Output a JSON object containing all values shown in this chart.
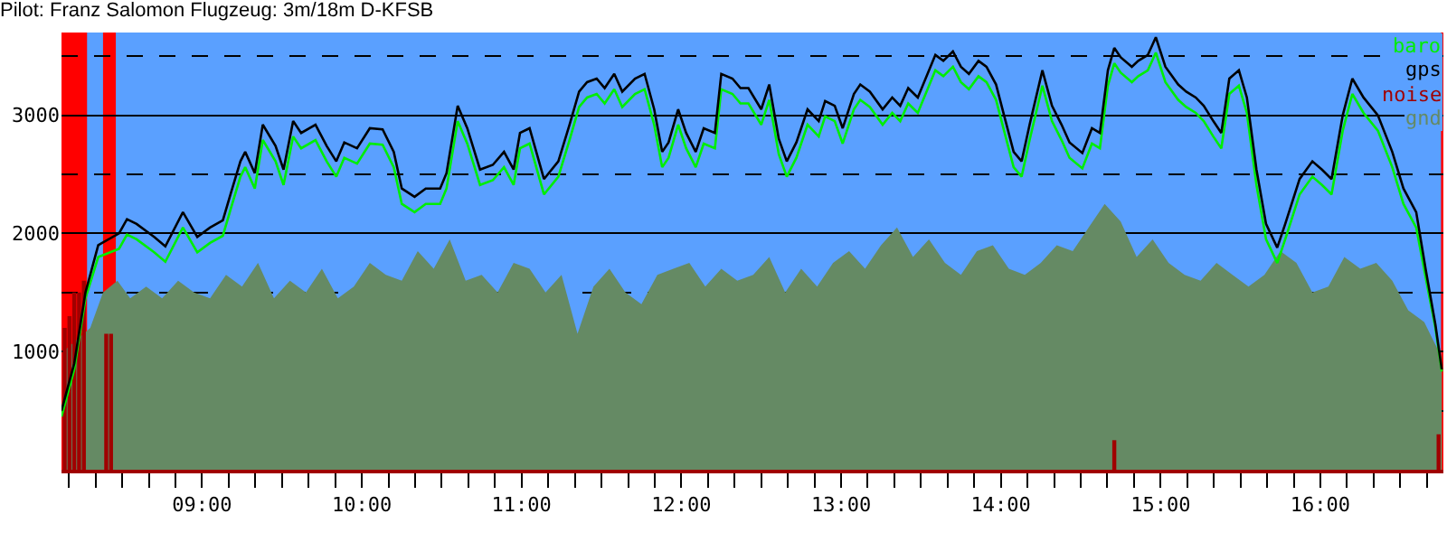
{
  "chart_data": {
    "type": "line",
    "title": "Pilot: Franz Salomon Flugzeug: 3m/18m D-KFSB",
    "xlim": [
      8.12,
      16.77
    ],
    "ylim": [
      0,
      3700
    ],
    "xticks": [
      {
        "value": 8.1667,
        "label": null
      },
      {
        "value": 8.3333,
        "label": null
      },
      {
        "value": 8.5,
        "label": null
      },
      {
        "value": 8.6667,
        "label": null
      },
      {
        "value": 8.8333,
        "label": null
      },
      {
        "value": 9,
        "label": "09:00"
      },
      {
        "value": 9.1667,
        "label": null
      },
      {
        "value": 9.3333,
        "label": null
      },
      {
        "value": 9.5,
        "label": null
      },
      {
        "value": 9.6667,
        "label": null
      },
      {
        "value": 9.8333,
        "label": null
      },
      {
        "value": 10,
        "label": "10:00"
      },
      {
        "value": 10.1667,
        "label": null
      },
      {
        "value": 10.3333,
        "label": null
      },
      {
        "value": 10.5,
        "label": null
      },
      {
        "value": 10.6667,
        "label": null
      },
      {
        "value": 10.8333,
        "label": null
      },
      {
        "value": 11,
        "label": "11:00"
      },
      {
        "value": 11.1667,
        "label": null
      },
      {
        "value": 11.3333,
        "label": null
      },
      {
        "value": 11.5,
        "label": null
      },
      {
        "value": 11.6667,
        "label": null
      },
      {
        "value": 11.8333,
        "label": null
      },
      {
        "value": 12,
        "label": "12:00"
      },
      {
        "value": 12.1667,
        "label": null
      },
      {
        "value": 12.3333,
        "label": null
      },
      {
        "value": 12.5,
        "label": null
      },
      {
        "value": 12.6667,
        "label": null
      },
      {
        "value": 12.8333,
        "label": null
      },
      {
        "value": 13,
        "label": "13:00"
      },
      {
        "value": 13.1667,
        "label": null
      },
      {
        "value": 13.3333,
        "label": null
      },
      {
        "value": 13.5,
        "label": null
      },
      {
        "value": 13.6667,
        "label": null
      },
      {
        "value": 13.8333,
        "label": null
      },
      {
        "value": 14,
        "label": "14:00"
      },
      {
        "value": 14.1667,
        "label": null
      },
      {
        "value": 14.3333,
        "label": null
      },
      {
        "value": 14.5,
        "label": null
      },
      {
        "value": 14.6667,
        "label": null
      },
      {
        "value": 14.8333,
        "label": null
      },
      {
        "value": 15,
        "label": "15:00"
      },
      {
        "value": 15.1667,
        "label": null
      },
      {
        "value": 15.3333,
        "label": null
      },
      {
        "value": 15.5,
        "label": null
      },
      {
        "value": 15.6667,
        "label": null
      },
      {
        "value": 15.8333,
        "label": null
      },
      {
        "value": 16,
        "label": "16:00"
      },
      {
        "value": 16.1667,
        "label": null
      },
      {
        "value": 16.3333,
        "label": null
      },
      {
        "value": 16.5,
        "label": null
      },
      {
        "value": 16.6667,
        "label": null
      }
    ],
    "yticks": [
      {
        "value": 500,
        "label": null
      },
      1000,
      {
        "value": 1500,
        "label": null
      },
      2000,
      {
        "value": 2500,
        "label": null
      },
      3000,
      {
        "value": 3500,
        "label": null
      }
    ],
    "grid": "y",
    "legend": "top right",
    "bands": [
      {
        "axis": "x",
        "from": 8.12,
        "to": 8.28,
        "color": "#ff0000"
      },
      {
        "axis": "x",
        "from": 8.38,
        "to": 8.46,
        "color": "#ff0000"
      },
      {
        "axis": "x",
        "from": 16.755,
        "to": 16.77,
        "color": "#ff0000"
      }
    ],
    "series": [
      {
        "name": "baro",
        "color": "#00ee00",
        "x": [
          8.12,
          8.2,
          8.27,
          8.35,
          8.48,
          8.53,
          8.59,
          8.7,
          8.77,
          8.88,
          8.97,
          9.05,
          9.13,
          9.18,
          9.24,
          9.27,
          9.33,
          9.38,
          9.46,
          9.51,
          9.57,
          9.62,
          9.71,
          9.78,
          9.84,
          9.89,
          9.97,
          10.05,
          10.13,
          10.2,
          10.25,
          10.33,
          10.4,
          10.49,
          10.53,
          10.6,
          10.66,
          10.74,
          10.82,
          10.89,
          10.95,
          10.99,
          11.05,
          11.14,
          11.23,
          11.3,
          11.36,
          11.41,
          11.47,
          11.52,
          11.58,
          11.63,
          11.71,
          11.77,
          11.83,
          11.88,
          11.92,
          11.98,
          12.03,
          12.09,
          12.14,
          12.21,
          12.25,
          12.32,
          12.37,
          12.42,
          12.5,
          12.55,
          12.61,
          12.66,
          12.72,
          12.79,
          12.86,
          12.9,
          12.96,
          13.01,
          13.08,
          13.12,
          13.18,
          13.26,
          13.32,
          13.37,
          13.42,
          13.48,
          13.59,
          13.64,
          13.7,
          13.75,
          13.8,
          13.86,
          13.91,
          13.97,
          14.02,
          14.08,
          14.13,
          14.18,
          14.26,
          14.32,
          14.38,
          14.43,
          14.51,
          14.57,
          14.62,
          14.67,
          14.71,
          14.75,
          14.82,
          14.86,
          14.92,
          14.97,
          15.03,
          15.11,
          15.16,
          15.22,
          15.27,
          15.33,
          15.38,
          15.43,
          15.49,
          15.54,
          15.6,
          15.66,
          15.73,
          15.78,
          15.87,
          15.95,
          16.01,
          16.07,
          16.14,
          16.2,
          16.27,
          16.36,
          16.45,
          16.52,
          16.6,
          16.66,
          16.72,
          16.76
        ],
        "values": [
          450,
          850,
          1450,
          1800,
          1870,
          1990,
          1950,
          1840,
          1760,
          2050,
          1840,
          1920,
          1980,
          2210,
          2480,
          2560,
          2380,
          2790,
          2610,
          2410,
          2820,
          2720,
          2790,
          2610,
          2480,
          2640,
          2590,
          2760,
          2750,
          2560,
          2250,
          2180,
          2250,
          2250,
          2380,
          2950,
          2760,
          2410,
          2450,
          2560,
          2410,
          2720,
          2760,
          2330,
          2480,
          2790,
          3070,
          3150,
          3180,
          3100,
          3220,
          3070,
          3180,
          3220,
          2920,
          2560,
          2640,
          2920,
          2720,
          2560,
          2760,
          2720,
          3220,
          3180,
          3100,
          3100,
          2920,
          3130,
          2670,
          2480,
          2640,
          2920,
          2820,
          2990,
          2950,
          2760,
          3050,
          3130,
          3070,
          2920,
          3020,
          2950,
          3100,
          3020,
          3380,
          3330,
          3410,
          3280,
          3220,
          3330,
          3280,
          3130,
          2870,
          2560,
          2480,
          2790,
          3250,
          2950,
          2790,
          2640,
          2550,
          2760,
          2720,
          3250,
          3440,
          3360,
          3280,
          3330,
          3380,
          3530,
          3280,
          3130,
          3070,
          3020,
          2950,
          2820,
          2720,
          3180,
          3250,
          3020,
          2410,
          1950,
          1750,
          1950,
          2330,
          2480,
          2410,
          2330,
          2870,
          3180,
          3020,
          2870,
          2560,
          2250,
          2050,
          1620,
          1200,
          830
        ]
      },
      {
        "name": "gps",
        "color": "#000000",
        "x": [
          8.12,
          8.2,
          8.27,
          8.35,
          8.48,
          8.53,
          8.59,
          8.7,
          8.77,
          8.88,
          8.97,
          9.05,
          9.13,
          9.18,
          9.24,
          9.27,
          9.33,
          9.38,
          9.46,
          9.51,
          9.57,
          9.62,
          9.71,
          9.78,
          9.84,
          9.89,
          9.97,
          10.05,
          10.13,
          10.2,
          10.25,
          10.33,
          10.4,
          10.49,
          10.53,
          10.6,
          10.66,
          10.74,
          10.82,
          10.89,
          10.95,
          10.99,
          11.05,
          11.14,
          11.23,
          11.3,
          11.36,
          11.41,
          11.47,
          11.52,
          11.58,
          11.63,
          11.71,
          11.77,
          11.83,
          11.88,
          11.92,
          11.98,
          12.03,
          12.09,
          12.14,
          12.21,
          12.25,
          12.32,
          12.37,
          12.42,
          12.5,
          12.55,
          12.61,
          12.66,
          12.72,
          12.79,
          12.86,
          12.9,
          12.96,
          13.01,
          13.08,
          13.12,
          13.18,
          13.26,
          13.32,
          13.37,
          13.42,
          13.48,
          13.59,
          13.64,
          13.7,
          13.75,
          13.8,
          13.86,
          13.91,
          13.97,
          14.02,
          14.08,
          14.13,
          14.18,
          14.26,
          14.32,
          14.38,
          14.43,
          14.51,
          14.57,
          14.62,
          14.67,
          14.71,
          14.75,
          14.82,
          14.86,
          14.92,
          14.97,
          15.03,
          15.11,
          15.16,
          15.22,
          15.27,
          15.33,
          15.38,
          15.43,
          15.49,
          15.54,
          15.6,
          15.66,
          15.73,
          15.78,
          15.87,
          15.95,
          16.01,
          16.07,
          16.14,
          16.2,
          16.27,
          16.36,
          16.45,
          16.52,
          16.6,
          16.66,
          16.72,
          16.76
        ],
        "values": [
          500,
          900,
          1500,
          1900,
          2000,
          2120,
          2080,
          1970,
          1890,
          2180,
          1970,
          2050,
          2110,
          2340,
          2610,
          2690,
          2510,
          2920,
          2740,
          2540,
          2950,
          2850,
          2920,
          2740,
          2610,
          2770,
          2720,
          2890,
          2880,
          2690,
          2380,
          2310,
          2380,
          2380,
          2510,
          3080,
          2890,
          2540,
          2580,
          2690,
          2540,
          2850,
          2890,
          2460,
          2610,
          2920,
          3200,
          3280,
          3310,
          3230,
          3350,
          3200,
          3310,
          3350,
          3050,
          2690,
          2770,
          3050,
          2850,
          2690,
          2890,
          2850,
          3350,
          3310,
          3230,
          3230,
          3050,
          3260,
          2800,
          2610,
          2770,
          3050,
          2950,
          3120,
          3080,
          2890,
          3180,
          3260,
          3200,
          3050,
          3150,
          3080,
          3230,
          3150,
          3510,
          3460,
          3540,
          3410,
          3350,
          3460,
          3410,
          3260,
          3000,
          2690,
          2610,
          2920,
          3380,
          3080,
          2920,
          2770,
          2680,
          2890,
          2850,
          3380,
          3570,
          3490,
          3410,
          3460,
          3510,
          3660,
          3410,
          3260,
          3200,
          3150,
          3080,
          2950,
          2850,
          3310,
          3380,
          3150,
          2540,
          2080,
          1880,
          2080,
          2460,
          2610,
          2540,
          2460,
          3000,
          3310,
          3150,
          3000,
          2690,
          2380,
          2180,
          1690,
          1230,
          850
        ]
      },
      {
        "name": "noise",
        "type": "bar",
        "color": "#a00000",
        "x": [
          8.14,
          8.17,
          8.2,
          8.23,
          8.26,
          8.4,
          8.43,
          14.71,
          16.74
        ],
        "values": [
          1200,
          1300,
          1500,
          1500,
          1600,
          1150,
          1150,
          250,
          300
        ]
      },
      {
        "name": "gnd",
        "type": "area",
        "color": "#658a64",
        "x": [
          8.13,
          8.3,
          8.38,
          8.47,
          8.55,
          8.65,
          8.75,
          8.85,
          8.95,
          9.05,
          9.15,
          9.25,
          9.35,
          9.45,
          9.55,
          9.65,
          9.75,
          9.85,
          9.95,
          10.05,
          10.15,
          10.25,
          10.35,
          10.45,
          10.55,
          10.65,
          10.75,
          10.85,
          10.95,
          11.05,
          11.15,
          11.25,
          11.35,
          11.45,
          11.55,
          11.65,
          11.75,
          11.85,
          11.95,
          12.05,
          12.15,
          12.25,
          12.35,
          12.45,
          12.55,
          12.65,
          12.75,
          12.85,
          12.95,
          13.05,
          13.15,
          13.25,
          13.35,
          13.45,
          13.55,
          13.65,
          13.75,
          13.85,
          13.95,
          14.05,
          14.15,
          14.25,
          14.35,
          14.45,
          14.55,
          14.65,
          14.75,
          14.85,
          14.95,
          15.05,
          15.15,
          15.25,
          15.35,
          15.45,
          15.55,
          15.65,
          15.75,
          15.85,
          15.95,
          16.05,
          16.15,
          16.25,
          16.35,
          16.45,
          16.55,
          16.65,
          16.76
        ],
        "values": [
          1000,
          1200,
          1500,
          1600,
          1450,
          1550,
          1450,
          1600,
          1500,
          1450,
          1650,
          1550,
          1750,
          1450,
          1600,
          1500,
          1700,
          1450,
          1550,
          1750,
          1650,
          1600,
          1850,
          1700,
          1950,
          1600,
          1650,
          1500,
          1750,
          1700,
          1500,
          1650,
          1150,
          1550,
          1700,
          1500,
          1400,
          1650,
          1700,
          1750,
          1550,
          1700,
          1600,
          1650,
          1800,
          1500,
          1700,
          1550,
          1750,
          1850,
          1700,
          1900,
          2050,
          1800,
          1950,
          1750,
          1650,
          1850,
          1900,
          1700,
          1650,
          1750,
          1900,
          1850,
          2050,
          2250,
          2100,
          1800,
          1950,
          1750,
          1650,
          1600,
          1750,
          1650,
          1550,
          1650,
          1850,
          1750,
          1500,
          1550,
          1800,
          1700,
          1750,
          1600,
          1350,
          1250,
          950
        ]
      }
    ]
  }
}
